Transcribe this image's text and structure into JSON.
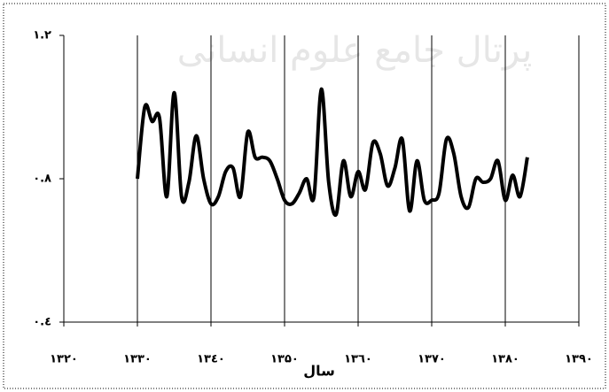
{
  "chart_data": {
    "type": "line",
    "watermark": "پرتال جامع علوم انسانی",
    "x_label": "سال",
    "x": [
      1330,
      1331,
      1332,
      1333,
      1334,
      1335,
      1336,
      1337,
      1338,
      1339,
      1340,
      1341,
      1342,
      1343,
      1344,
      1345,
      1346,
      1347,
      1348,
      1349,
      1350,
      1351,
      1352,
      1353,
      1354,
      1355,
      1356,
      1357,
      1358,
      1359,
      1360,
      1361,
      1362,
      1363,
      1364,
      1365,
      1366,
      1367,
      1368,
      1369,
      1370,
      1371,
      1372,
      1373,
      1374,
      1375,
      1376,
      1377,
      1378,
      1379,
      1380,
      1381,
      1382,
      1383
    ],
    "series": [
      {
        "color": "#000000",
        "values": [
          0.8,
          1.0,
          0.96,
          0.97,
          0.75,
          1.04,
          0.75,
          0.79,
          0.92,
          0.8,
          0.73,
          0.75,
          0.82,
          0.83,
          0.75,
          0.93,
          0.86,
          0.86,
          0.85,
          0.8,
          0.74,
          0.73,
          0.76,
          0.8,
          0.75,
          1.05,
          0.79,
          0.7,
          0.85,
          0.75,
          0.82,
          0.77,
          0.9,
          0.87,
          0.78,
          0.83,
          0.91,
          0.71,
          0.85,
          0.74,
          0.74,
          0.76,
          0.91,
          0.87,
          0.75,
          0.72,
          0.8,
          0.79,
          0.8,
          0.85,
          0.74,
          0.81,
          0.75,
          0.86
        ]
      }
    ],
    "xlim": [
      1320,
      1390
    ],
    "xticks": [
      {
        "value": 1320,
        "label": "۱۳۲۰"
      },
      {
        "value": 1330,
        "label": "۱۳۳۰"
      },
      {
        "value": 1340,
        "label": "۱۳٤۰"
      },
      {
        "value": 1350,
        "label": "۱۳۵۰"
      },
      {
        "value": 1360,
        "label": "۱۳٦۰"
      },
      {
        "value": 1370,
        "label": "۱۳۷۰"
      },
      {
        "value": 1380,
        "label": "۱۳۸۰"
      },
      {
        "value": 1390,
        "label": "۱۳۹۰"
      }
    ],
    "ylim": [
      0.4,
      1.2
    ],
    "yticks": [
      {
        "value": 0.4,
        "label": "۰.٤"
      },
      {
        "value": 0.8,
        "label": "۰.۸"
      },
      {
        "value": 1.2,
        "label": "۱.۲"
      }
    ],
    "grid": true
  }
}
